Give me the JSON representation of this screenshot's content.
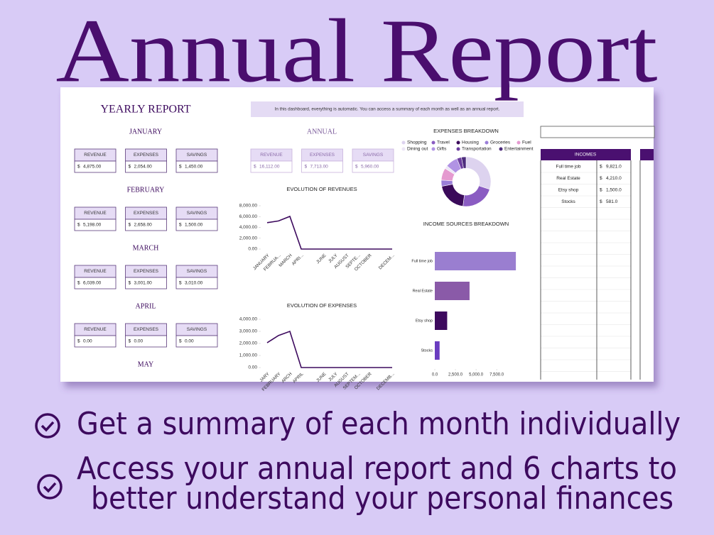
{
  "headline": "Annual Report",
  "dashboard": {
    "title": "YEARLY REPORT",
    "notice": "In this dashboard, everything is automatic. You can access a summary of each month as well as an annual report.",
    "months": [
      {
        "name": "JANUARY",
        "cards": [
          {
            "label": "REVENUE",
            "currency": "$",
            "amount": "4,875.00"
          },
          {
            "label": "EXPENSES",
            "currency": "$",
            "amount": "2,054.00"
          },
          {
            "label": "SAVINGS",
            "currency": "$",
            "amount": "1,450.00"
          }
        ]
      },
      {
        "name": "FEBRUARY",
        "cards": [
          {
            "label": "REVENUE",
            "currency": "$",
            "amount": "5,198.00"
          },
          {
            "label": "EXPENSES",
            "currency": "$",
            "amount": "2,658.00"
          },
          {
            "label": "SAVINGS",
            "currency": "$",
            "amount": "1,500.00"
          }
        ]
      },
      {
        "name": "MARCH",
        "cards": [
          {
            "label": "REVENUE",
            "currency": "$",
            "amount": "6,039.00"
          },
          {
            "label": "EXPENSES",
            "currency": "$",
            "amount": "3,001.00"
          },
          {
            "label": "SAVINGS",
            "currency": "$",
            "amount": "3,010.00"
          }
        ]
      },
      {
        "name": "APRIL",
        "cards": [
          {
            "label": "REVENUE",
            "currency": "$",
            "amount": "0.00"
          },
          {
            "label": "EXPENSES",
            "currency": "$",
            "amount": "0.00"
          },
          {
            "label": "SAVINGS",
            "currency": "$",
            "amount": "0.00"
          }
        ]
      },
      {
        "name": "MAY",
        "cards": []
      }
    ],
    "annual": {
      "name": "ANNUAL",
      "cards": [
        {
          "label": "REVENUE",
          "currency": "$",
          "amount": "16,112.00"
        },
        {
          "label": "EXPENSES",
          "currency": "$",
          "amount": "7,713.00"
        },
        {
          "label": "SAVINGS",
          "currency": "$",
          "amount": "5,960.00"
        }
      ]
    },
    "revenue_chart": {
      "type": "line",
      "title": "EVOLUTION OF REVENUES",
      "color": "#3d0a5e",
      "categories": [
        "JANUARY",
        "FEBRUA...",
        "MARCH",
        "APRI...",
        null,
        "JUNE",
        "JULY",
        "AUGUST",
        "SEPTE...",
        "OCTOBER",
        null,
        "DECEM..."
      ],
      "values": [
        4875,
        5198,
        6039,
        0,
        0,
        0,
        0,
        0,
        0,
        0,
        0,
        0
      ],
      "ylim": [
        0,
        8000
      ],
      "yticks": [
        {
          "value": 0,
          "label": "0.00"
        },
        {
          "value": 2000,
          "label": "2,000.00"
        },
        {
          "value": 4000,
          "label": "4,000.00"
        },
        {
          "value": 6000,
          "label": "6,000.00"
        },
        {
          "value": 8000,
          "label": "8,000.00"
        }
      ]
    },
    "expenses_chart": {
      "type": "line",
      "title": "EVOLUTION OF EXPENSES",
      "color": "#3d0a5e",
      "categories": [
        "JARY",
        "FEBRUARY",
        "ARCH",
        "APRIL",
        null,
        "JUNE",
        "JULY",
        "AUGUST",
        "SEPTEM...",
        "OCTOBER",
        null,
        "DECEMB..."
      ],
      "values": [
        2054,
        2658,
        3001,
        0,
        0,
        0,
        0,
        0,
        0,
        0,
        0,
        0
      ],
      "ylim": [
        0,
        4000
      ],
      "yticks": [
        {
          "value": 0,
          "label": "0.00"
        },
        {
          "value": 1000,
          "label": "1,000.00"
        },
        {
          "value": 2000,
          "label": "2,000.00"
        },
        {
          "value": 3000,
          "label": "3,000.00"
        },
        {
          "value": 4000,
          "label": "4,000.00"
        }
      ]
    },
    "expenses_breakdown": {
      "type": "donut",
      "title": "EXPENSES BREAKDOWN",
      "series": [
        {
          "name": "Shopping",
          "color": "#ddd3ef",
          "value": 30
        },
        {
          "name": "Travel",
          "color": "#8a5cc2",
          "value": 22
        },
        {
          "name": "Housing",
          "color": "#3a0a5a",
          "value": 20
        },
        {
          "name": "Groceries",
          "color": "#9a7ed8",
          "value": 4
        },
        {
          "name": "Fuel",
          "color": "#e59ad0",
          "value": 8
        },
        {
          "name": "Dining out",
          "color": "#ece6f6",
          "value": 2
        },
        {
          "name": "Gifts",
          "color": "#b193e4",
          "value": 8
        },
        {
          "name": "Transportation",
          "color": "#6b3d9e",
          "value": 3
        },
        {
          "name": "Entertainment",
          "color": "#4d2c7c",
          "value": 3
        }
      ]
    },
    "income_chart": {
      "type": "hbar",
      "title": "INCOME SOURCES BREAKDOWN",
      "categories": [
        "Full time job",
        "Real Estate",
        "Etsy shop",
        "Stocks"
      ],
      "values": [
        9821,
        4210,
        1500,
        581
      ],
      "colors": [
        "#9a7ed0",
        "#8a5aa8",
        "#3d0a5e",
        "#6a3cc0"
      ],
      "xlim": [
        0,
        10500
      ],
      "xticks": [
        {
          "value": 0,
          "label": "0.0"
        },
        {
          "value": 2500,
          "label": "2,500.0"
        },
        {
          "value": 5000,
          "label": "5,000.0"
        },
        {
          "value": 7500,
          "label": "7,500.0"
        }
      ]
    },
    "incomes_table": {
      "header": "INCOMES",
      "rows": [
        {
          "name": "Full time job",
          "currency": "$",
          "amount": "9,821.0"
        },
        {
          "name": "Real Estate",
          "currency": "$",
          "amount": "4,210.0"
        },
        {
          "name": "Etsy shop",
          "currency": "$",
          "amount": "1,500.0"
        },
        {
          "name": "Stocks",
          "currency": "$",
          "amount": "581.0"
        }
      ]
    }
  },
  "bullets": [
    {
      "lines": [
        "Get a summary of each month individually"
      ]
    },
    {
      "lines": [
        "Access your annual report and 6 charts to",
        "better understand your personal finances"
      ]
    }
  ]
}
